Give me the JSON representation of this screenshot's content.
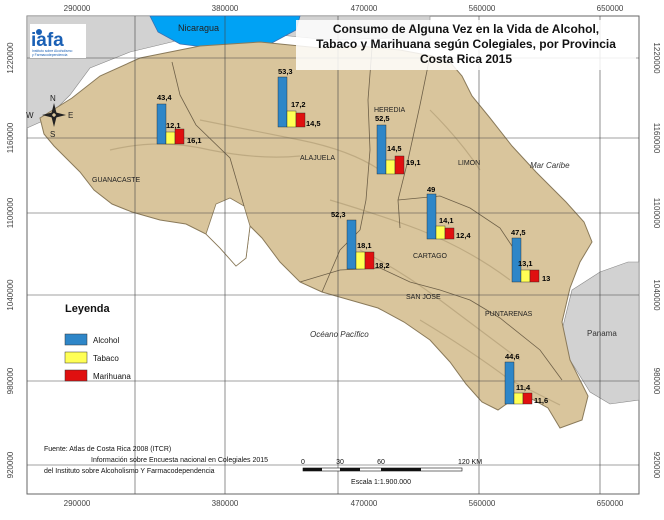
{
  "title": [
    "Consumo de Alguna Vez en la Vida de Alcohol,",
    "Tabaco y Marihuana según Colegiales, por Provincia",
    "Costa Rica 2015"
  ],
  "logo": {
    "text": "iafa",
    "subtitle": [
      "Instituto sobre Alcoholismo",
      "y Farmacodependencia"
    ]
  },
  "grid": {
    "x_labels": [
      "290000",
      "380000",
      "470000",
      "560000",
      "650000"
    ],
    "y_labels": [
      "1220000",
      "1160000",
      "1100000",
      "1040000",
      "980000",
      "920000"
    ]
  },
  "places": {
    "nicaragua": "Nicaragua",
    "panama": "Panama",
    "mar_caribe": "Mar Caribe",
    "oceano_pacifico": "Océano Pacífico"
  },
  "compass": {
    "n": "N",
    "s": "S",
    "e": "E",
    "w": "W"
  },
  "legend": {
    "title": "Leyenda",
    "items": [
      {
        "label": "Alcohol",
        "color": "#2e86c8"
      },
      {
        "label": "Tabaco",
        "color": "#ffff55"
      },
      {
        "label": "Marihuana",
        "color": "#e01010"
      }
    ]
  },
  "provinces": [
    {
      "name": "GUANACASTE",
      "values": [
        "43,4",
        "12,1",
        "16,1"
      ]
    },
    {
      "name": "ALAJUELA",
      "values": [
        "53,3",
        "17,2",
        "14,5"
      ]
    },
    {
      "name": "HEREDIA",
      "values": [
        "52,5",
        "14,5",
        "19,1"
      ]
    },
    {
      "name": "LIMON",
      "values": [
        "47,5",
        "13,1",
        "13"
      ]
    },
    {
      "name": "CARTAGO",
      "values": [
        "49",
        "14,1",
        "12,4"
      ]
    },
    {
      "name": "SAN JOSE",
      "values": [
        "52,3",
        "18,1",
        "18,2"
      ]
    },
    {
      "name": "PUNTARENAS",
      "values": [
        "44,6",
        "11,4",
        "11,6"
      ]
    }
  ],
  "source": [
    "Fuente: Atlas de Costa Rica 2008 (ITCR)",
    "Información sobre Encuesta nacional en Colegiales 2015",
    "del Instituto sobre Alcoholismo  Y Farmacodependencia"
  ],
  "scale": {
    "ticks": [
      "0",
      "30",
      "60",
      "120 KM"
    ],
    "caption": "Escala 1:1.900.000"
  }
}
